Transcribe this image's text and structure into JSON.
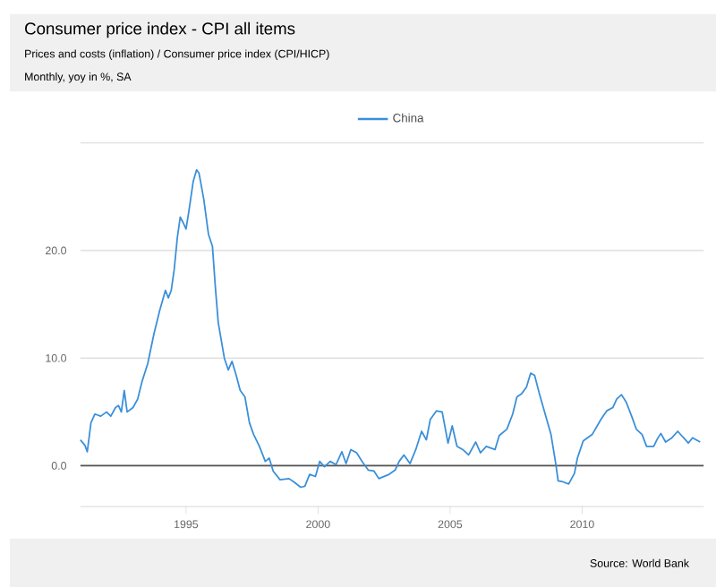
{
  "chart_data": {
    "type": "line",
    "title": "Consumer price index - CPI all items",
    "subtitle": "Prices and costs (inflation) / Consumer price index (CPI/HICP)",
    "annotations": [
      "Monthly, yoy in %, SA",
      "Source: World Bank"
    ],
    "xlim": [
      1991.0,
      2014.6
    ],
    "xticks": [
      1995,
      2000,
      2005,
      2010
    ],
    "ylim": [
      -3.8,
      30
    ],
    "yticks": [
      {
        "value": 0,
        "label": "0.0"
      },
      {
        "value": 10,
        "label": "10.0"
      },
      {
        "value": 20,
        "label": "20.0"
      }
    ],
    "grid": "y",
    "legend": "top",
    "ref_lines": [
      {
        "axis": "y",
        "value": 0,
        "label": null,
        "color": "#555555"
      }
    ],
    "series": [
      {
        "name": "China",
        "color": "#3a8fd9",
        "x": [
          1991.0,
          1991.17,
          1991.26,
          1991.4,
          1991.55,
          1991.77,
          1991.99,
          1992.15,
          1992.33,
          1992.44,
          1992.55,
          1992.66,
          1992.77,
          1992.99,
          1993.17,
          1993.33,
          1993.55,
          1993.78,
          1994.0,
          1994.22,
          1994.33,
          1994.44,
          1994.55,
          1994.67,
          1994.78,
          1994.89,
          1995.0,
          1995.11,
          1995.27,
          1995.4,
          1995.49,
          1995.67,
          1995.85,
          1996.0,
          1996.11,
          1996.22,
          1996.45,
          1996.6,
          1996.74,
          1996.9,
          1997.05,
          1997.23,
          1997.4,
          1997.56,
          1997.78,
          1998.0,
          1998.15,
          1998.3,
          1998.56,
          1998.9,
          1999.08,
          1999.34,
          1999.5,
          1999.68,
          1999.9,
          2000.06,
          2000.24,
          2000.46,
          2000.68,
          2000.9,
          2001.06,
          2001.24,
          2001.46,
          2001.69,
          2001.9,
          2002.12,
          2002.3,
          2002.69,
          2002.92,
          2003.07,
          2003.25,
          2003.48,
          2003.7,
          2003.92,
          2004.1,
          2004.25,
          2004.48,
          2004.7,
          2004.92,
          2005.08,
          2005.26,
          2005.48,
          2005.7,
          2005.97,
          2006.15,
          2006.37,
          2006.7,
          2006.86,
          2007.15,
          2007.37,
          2007.53,
          2007.71,
          2007.89,
          2008.05,
          2008.2,
          2008.38,
          2008.6,
          2008.82,
          2009.0,
          2009.09,
          2009.27,
          2009.49,
          2009.71,
          2009.82,
          2010.04,
          2010.38,
          2010.71,
          2010.93,
          2011.16,
          2011.31,
          2011.49,
          2011.67,
          2011.89,
          2012.05,
          2012.27,
          2012.44,
          2012.71,
          2012.85,
          2012.98,
          2013.16,
          2013.4,
          2013.62,
          2013.84,
          2014.02,
          2014.18,
          2014.47
        ],
        "values": [
          2.4,
          1.9,
          1.3,
          4.0,
          4.8,
          4.6,
          5.0,
          4.6,
          5.4,
          5.6,
          5.0,
          7.0,
          5.0,
          5.4,
          6.2,
          7.8,
          9.5,
          12.2,
          14.4,
          16.3,
          15.6,
          16.3,
          18.2,
          21.2,
          23.1,
          22.6,
          22.0,
          23.7,
          26.4,
          27.5,
          27.2,
          24.8,
          21.5,
          20.4,
          16.6,
          13.3,
          10.0,
          8.9,
          9.7,
          8.4,
          7.0,
          6.4,
          4.0,
          2.9,
          1.8,
          0.4,
          0.7,
          -0.5,
          -1.3,
          -1.2,
          -1.5,
          -2.0,
          -1.9,
          -0.8,
          -1.0,
          0.4,
          -0.1,
          0.4,
          0.1,
          1.3,
          0.2,
          1.5,
          1.2,
          0.3,
          -0.4,
          -0.5,
          -1.2,
          -0.8,
          -0.4,
          0.4,
          1.0,
          0.2,
          1.5,
          3.2,
          2.4,
          4.3,
          5.1,
          5.0,
          2.1,
          3.7,
          1.8,
          1.5,
          1.0,
          2.2,
          1.2,
          1.8,
          1.5,
          2.8,
          3.4,
          4.8,
          6.4,
          6.7,
          7.3,
          8.6,
          8.4,
          6.7,
          4.8,
          2.9,
          0.2,
          -1.4,
          -1.5,
          -1.7,
          -0.7,
          0.7,
          2.3,
          2.9,
          4.3,
          5.1,
          5.4,
          6.2,
          6.6,
          5.9,
          4.5,
          3.4,
          2.9,
          1.8,
          1.8,
          2.5,
          3.0,
          2.2,
          2.6,
          3.2,
          2.6,
          2.1,
          2.6,
          2.2
        ]
      }
    ]
  }
}
